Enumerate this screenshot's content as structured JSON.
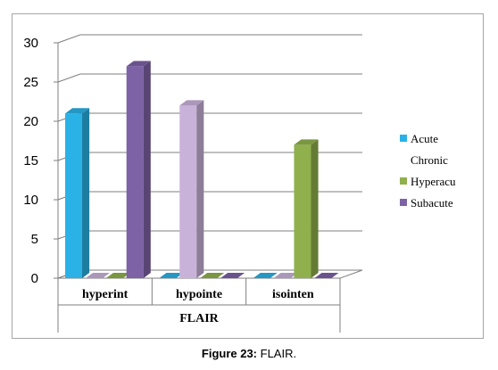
{
  "caption": {
    "label": "Figure 23:",
    "text": " FLAIR."
  },
  "chart_data": {
    "type": "bar",
    "style": "3d-clustered-column",
    "title": "",
    "xlabel": "FLAIR",
    "ylabel": "",
    "categories": [
      "hyperint",
      "hypointe",
      "isointen"
    ],
    "ylim": [
      0,
      30
    ],
    "yticks": [
      0,
      5,
      10,
      15,
      20,
      25,
      30
    ],
    "grid": true,
    "legend_position": "right",
    "series": [
      {
        "name": "Acute",
        "values": [
          21,
          0,
          0
        ],
        "color": "#2ab2e6"
      },
      {
        "name": "Chronic",
        "values": [
          0,
          22,
          0
        ],
        "color": "#c9b2da"
      },
      {
        "name": "Hyperacu",
        "values": [
          0,
          0,
          17
        ],
        "color": "#8fb04c"
      },
      {
        "name": "Subacute",
        "values": [
          27,
          0,
          0
        ],
        "color": "#7d62a6"
      }
    ]
  }
}
